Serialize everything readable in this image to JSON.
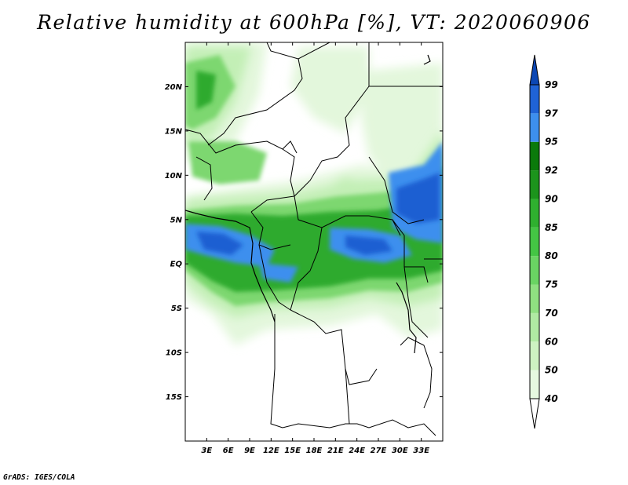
{
  "title": "Relative humidity at 600hPa [%], VT: 2020060906",
  "credit": "GrADS: IGES/COLA",
  "map": {
    "lon_range": [
      0,
      36
    ],
    "lat_range": [
      -20,
      25
    ],
    "x_ticks": [
      "3E",
      "6E",
      "9E",
      "12E",
      "15E",
      "18E",
      "21E",
      "24E",
      "27E",
      "30E",
      "33E"
    ],
    "y_ticks": [
      "20N",
      "15N",
      "10N",
      "5N",
      "EQ",
      "5S",
      "10S",
      "15S"
    ]
  },
  "colorbar": {
    "levels": [
      "40",
      "50",
      "60",
      "70",
      "75",
      "80",
      "85",
      "90",
      "92",
      "95",
      "97",
      "99"
    ],
    "colors": [
      "#ffffff",
      "#e6f8e0",
      "#cdf2c2",
      "#b0eaa3",
      "#8fe081",
      "#6ad463",
      "#44c544",
      "#2fb02f",
      "#1c941c",
      "#0b7a0b",
      "#3d8fee",
      "#1f63d6",
      "#0b47b4"
    ]
  }
}
